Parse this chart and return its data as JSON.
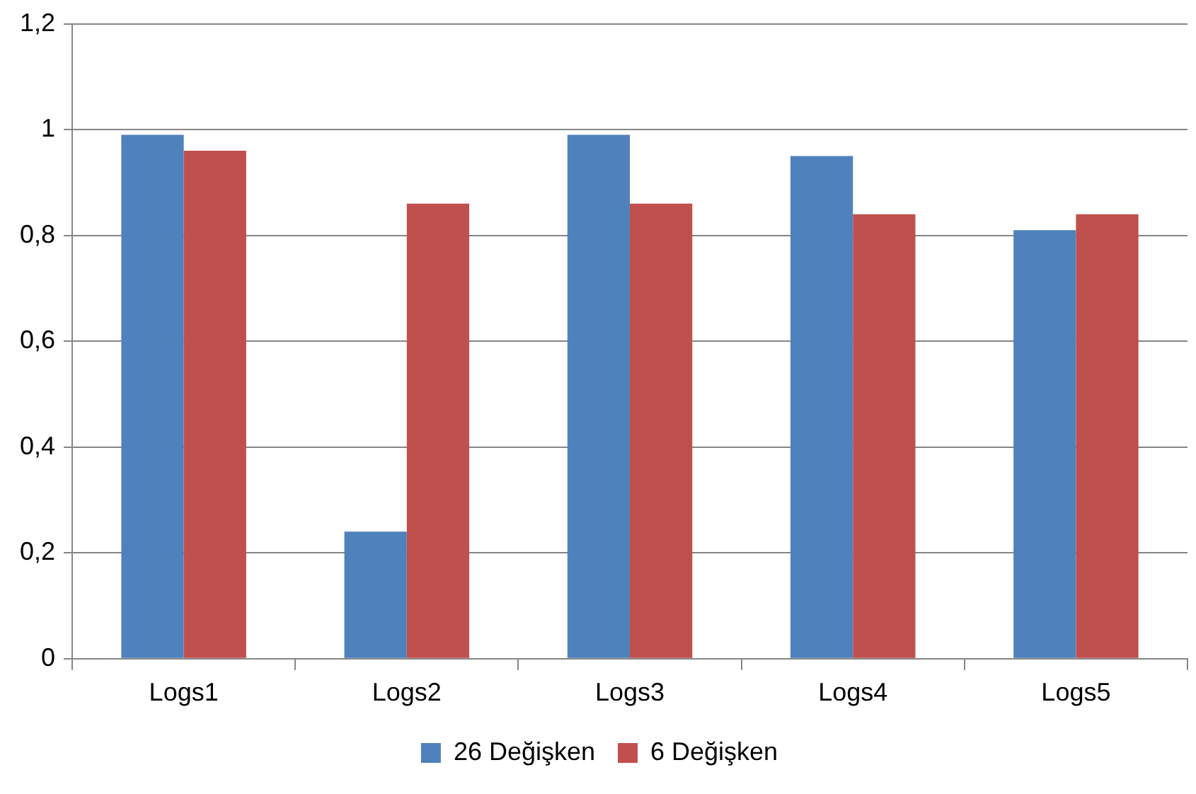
{
  "chart_data": {
    "type": "bar",
    "categories": [
      "Logs1",
      "Logs2",
      "Logs3",
      "Logs4",
      "Logs5"
    ],
    "series": [
      {
        "name": "26 Değişken",
        "color": "#4f81bd",
        "values": [
          0.99,
          0.24,
          0.99,
          0.95,
          0.81
        ]
      },
      {
        "name": "6 Değişken",
        "color": "#c0504d",
        "values": [
          0.96,
          0.86,
          0.86,
          0.84,
          0.84
        ]
      }
    ],
    "ylim": [
      0,
      1.2
    ],
    "yticks": [
      {
        "value": 0,
        "label": "0"
      },
      {
        "value": 0.2,
        "label": "0,2"
      },
      {
        "value": 0.4,
        "label": "0,4"
      },
      {
        "value": 0.6,
        "label": "0,6"
      },
      {
        "value": 0.8,
        "label": "0,8"
      },
      {
        "value": 1,
        "label": "1"
      },
      {
        "value": 1.2,
        "label": "1,2"
      }
    ],
    "grid": "y",
    "legend": "bottom"
  }
}
